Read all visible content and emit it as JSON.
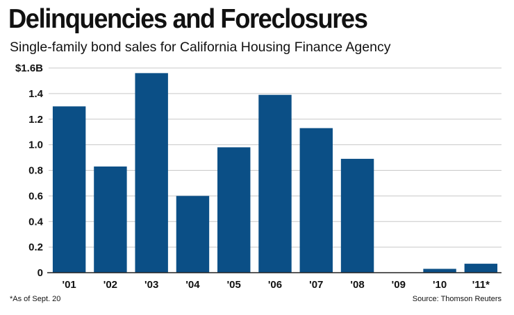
{
  "header": {
    "title": "Delinquencies and Foreclosures",
    "subtitle": "Single-family bond sales for California Housing Finance Agency"
  },
  "footer": {
    "footnote": "*As of Sept. 20",
    "source": "Source: Thomson Reuters"
  },
  "colors": {
    "bar": "#0b4f86",
    "grid": "#c8c8c8",
    "axis": "#222222"
  },
  "chart_data": {
    "type": "bar",
    "title": "Delinquencies and Foreclosures",
    "subtitle": "Single-family bond sales for California Housing Finance Agency",
    "xlabel": "",
    "ylabel": "",
    "categories": [
      "'01",
      "'02",
      "'03",
      "'04",
      "'05",
      "'06",
      "'07",
      "'08",
      "'09",
      "'10",
      "'11*"
    ],
    "values": [
      1.3,
      0.83,
      1.56,
      0.6,
      0.98,
      1.39,
      1.13,
      0.89,
      0,
      0.03,
      0.07
    ],
    "ylim": [
      0,
      1.6
    ],
    "yticks": [
      0,
      0.2,
      0.4,
      0.6,
      0.8,
      1.0,
      1.2,
      1.4,
      1.6
    ],
    "ytick_labels": [
      "0",
      "0.2",
      "0.4",
      "0.6",
      "0.8",
      "1.0",
      "1.2",
      "1.4",
      "$1.6B"
    ],
    "grid": true,
    "unit": "billions of dollars"
  }
}
